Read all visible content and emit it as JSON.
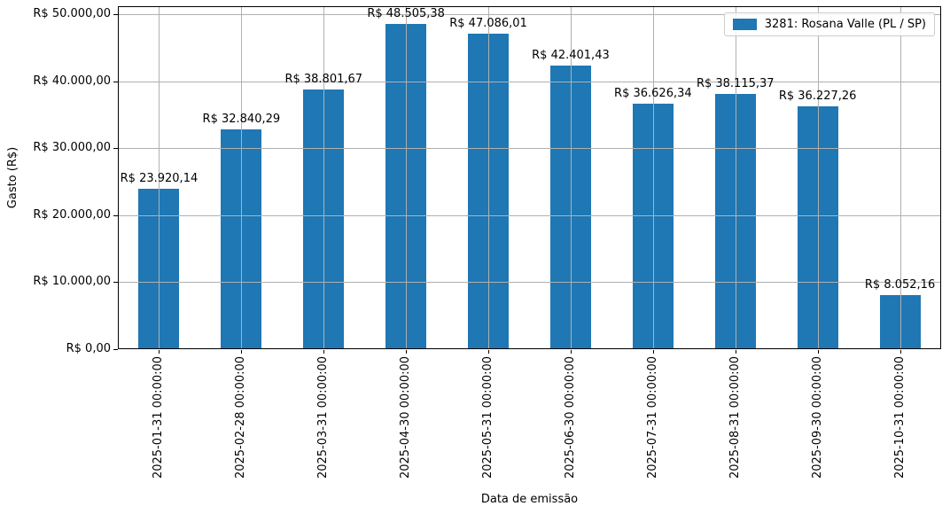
{
  "chart_data": {
    "type": "bar",
    "title": "",
    "xlabel": "Data de emissão",
    "ylabel": "Gasto (R$)",
    "categories": [
      "2025-01-31 00:00:00",
      "2025-02-28 00:00:00",
      "2025-03-31 00:00:00",
      "2025-04-30 00:00:00",
      "2025-05-31 00:00:00",
      "2025-06-30 00:00:00",
      "2025-07-31 00:00:00",
      "2025-08-31 00:00:00",
      "2025-09-30 00:00:00",
      "2025-10-31 00:00:00"
    ],
    "values": [
      23920.14,
      32840.29,
      38801.67,
      48505.38,
      47086.01,
      42401.43,
      36626.34,
      38115.37,
      36227.26,
      8052.16
    ],
    "bar_labels": [
      "R$ 23.920,14",
      "R$ 32.840,29",
      "R$ 38.801,67",
      "R$ 48.505,38",
      "R$ 47.086,01",
      "R$ 42.401,43",
      "R$ 36.626,34",
      "R$ 38.115,37",
      "R$ 36.227,26",
      "R$ 8.052,16"
    ],
    "ytick_values": [
      0,
      10000,
      20000,
      30000,
      40000,
      50000
    ],
    "ytick_labels": [
      "R$ 0,00",
      "R$ 10.000,00",
      "R$ 20.000,00",
      "R$ 30.000,00",
      "R$ 40.000,00",
      "R$ 50.000,00"
    ],
    "ylim": [
      0,
      51200
    ],
    "grid": true,
    "grid_above_bars": true,
    "legend": {
      "position": "upper right",
      "entries": [
        {
          "label": "3281: Rosana Valle (PL / SP)",
          "color": "#1f77b4"
        }
      ]
    },
    "colors": {
      "bar": "#1f77b4",
      "grid": "#b0b0b0",
      "spine": "#000000",
      "text": "#000000",
      "legend_border": "#cccccc"
    }
  }
}
